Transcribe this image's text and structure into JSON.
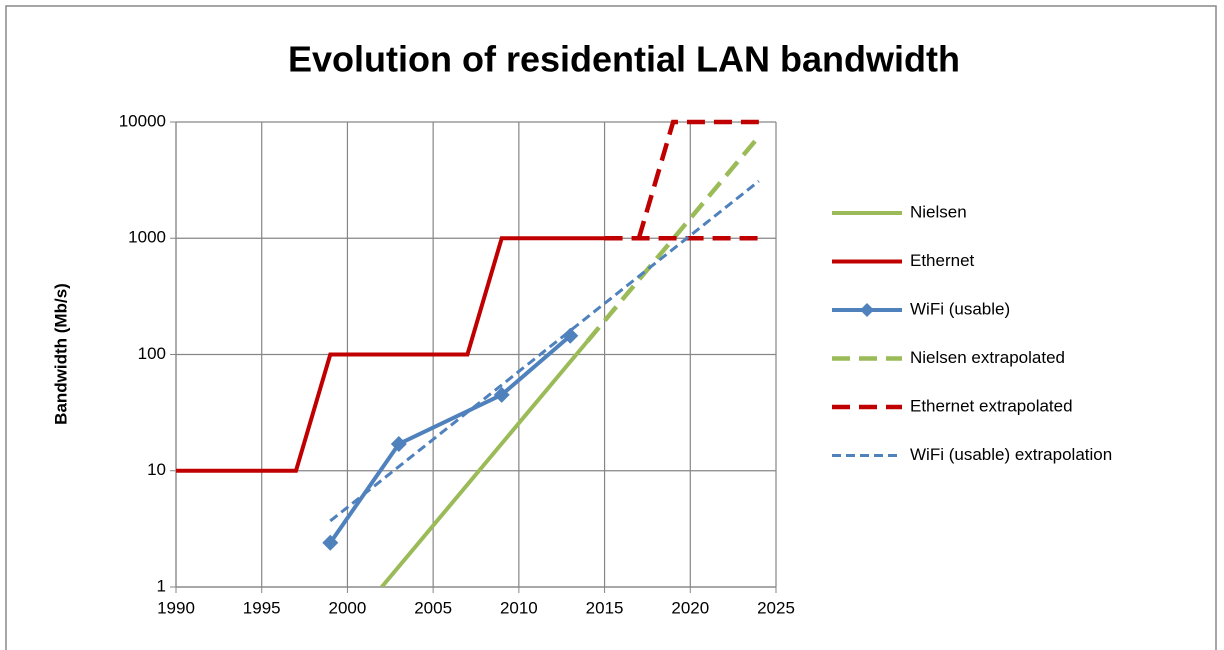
{
  "chart_data": {
    "type": "line",
    "title": "Evolution of residential LAN bandwidth",
    "y_label": "Bandwidth (Mb/s)",
    "log_y": true,
    "grid": true,
    "legend": "right",
    "xlim": [
      1990,
      2025
    ],
    "xticks": [
      1990,
      1995,
      2000,
      2005,
      2010,
      2015,
      2020,
      2025
    ],
    "ylim": [
      1,
      10000
    ],
    "yticks": [
      1,
      10,
      100,
      1000,
      10000
    ],
    "series": [
      {
        "name": "Nielsen",
        "color": "#9bbb59",
        "x": [
          2002,
          2014
        ],
        "values": [
          1,
          130
        ]
      },
      {
        "name": "Ethernet",
        "color": "#c00000",
        "x": [
          1990,
          1997,
          1999,
          2007,
          2009,
          2015
        ],
        "values": [
          10,
          10,
          100,
          100,
          1000,
          1000
        ]
      },
      {
        "name": "WiFi (usable)",
        "color": "#4f81bd",
        "marker": "diamond",
        "x": [
          1999,
          2003,
          2009,
          2013
        ],
        "values": [
          2.4,
          17,
          45,
          145
        ]
      },
      {
        "name": "Nielsen extrapolated",
        "color": "#9bbb59",
        "dash": "long",
        "x": [
          2014,
          2024
        ],
        "values": [
          130,
          7500
        ]
      },
      {
        "name": "Ethernet extrapolated",
        "color": "#c00000",
        "dash": "long",
        "x": [
          2015,
          2024,
          null,
          2017,
          2019,
          2024
        ],
        "values": [
          1000,
          1000,
          null,
          1000,
          10000,
          10000
        ]
      },
      {
        "name": "WiFi (usable)  extrapolation",
        "color": "#4f81bd",
        "dash": "short",
        "x": [
          1999,
          2024
        ],
        "values": [
          3.7,
          3100
        ]
      }
    ]
  }
}
